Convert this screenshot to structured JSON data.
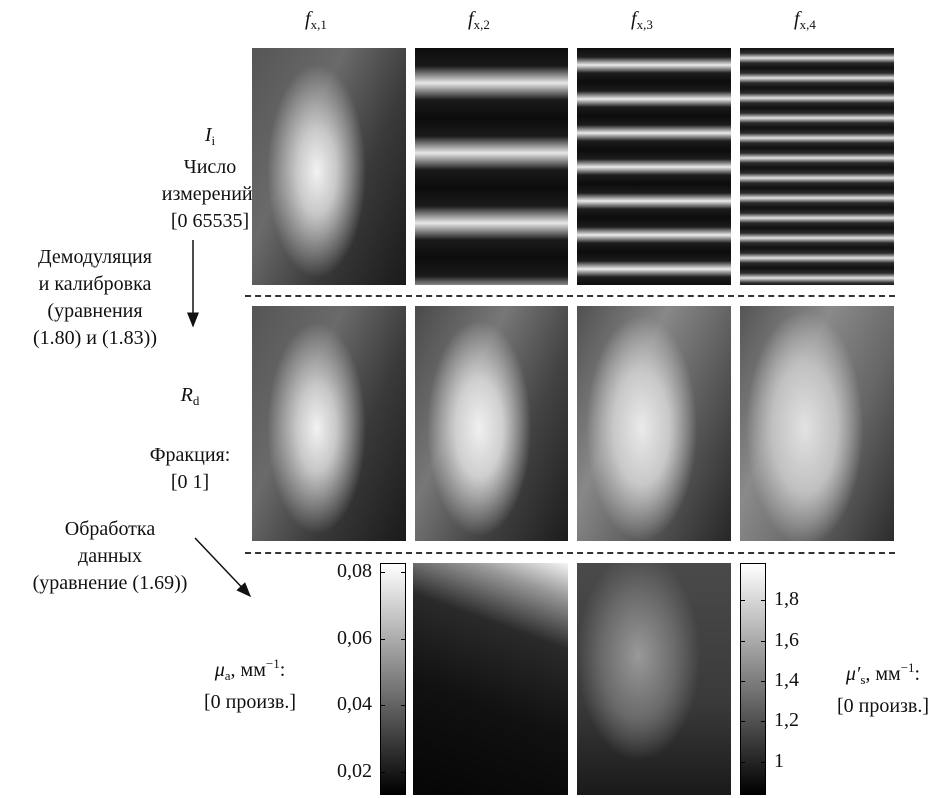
{
  "column_headers": [
    {
      "symbol": "f",
      "subscript": "x,1"
    },
    {
      "symbol": "f",
      "subscript": "x,2"
    },
    {
      "symbol": "f",
      "subscript": "x,3"
    },
    {
      "symbol": "f",
      "subscript": "x,4"
    }
  ],
  "rows": [
    {
      "symbol": "I",
      "subscript": "i",
      "caption": [
        "Число",
        "измерений:"
      ],
      "range": "[0 65535]"
    },
    {
      "symbol": "R",
      "subscript": "d",
      "caption": [
        "Фракция:"
      ],
      "range": "[0 1]"
    }
  ],
  "steps": [
    [
      "Демодуляция",
      "и калибровка",
      "(уравнения",
      "(1.80) и (1.83))"
    ],
    [
      "Обработка",
      "данных",
      "(уравнение (1.69))"
    ]
  ],
  "absorption": {
    "symbol": "μ",
    "subscript": "a",
    "unit": ", мм",
    "exponent": "−1",
    "suffix": ":",
    "range": "[0 произв.]",
    "colorbar": {
      "lim": [
        0.0131,
        0.0827
      ],
      "ticks": [
        {
          "value": 0.02,
          "label": "0,02"
        },
        {
          "value": 0.04,
          "label": "0,04"
        },
        {
          "value": 0.06,
          "label": "0,06"
        },
        {
          "value": 0.08,
          "label": "0,08"
        }
      ]
    }
  },
  "scattering": {
    "symbol": "μ′",
    "subscript": "s",
    "unit": ", мм",
    "exponent": "−1",
    "suffix": ":",
    "range": "[0 произв.]",
    "colorbar": {
      "lim": [
        0.834,
        1.986
      ],
      "ticks": [
        1,
        {
          "value": 1.2,
          "label": "1,2"
        },
        {
          "value": 1.4,
          "label": "1,4"
        },
        {
          "value": 1.6,
          "label": "1,6"
        },
        {
          "value": 1.8,
          "label": "1,8"
        }
      ]
    }
  }
}
